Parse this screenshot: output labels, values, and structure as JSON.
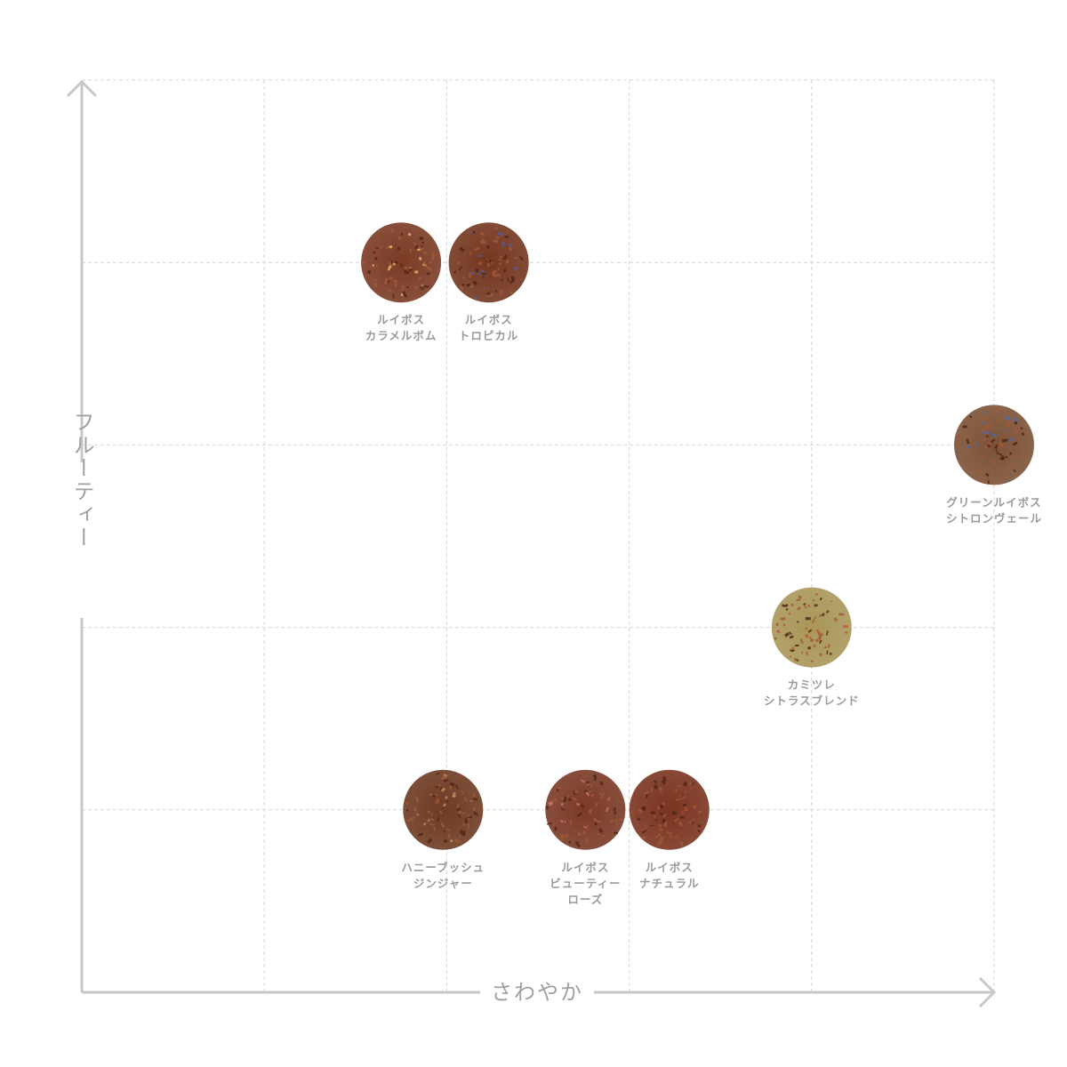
{
  "chart_data": {
    "type": "scatter",
    "xlabel": "さわやか",
    "ylabel": "フルーティー",
    "xlim": [
      0,
      5
    ],
    "ylim": [
      0,
      5
    ],
    "grid": true,
    "points": [
      {
        "label": [
          "ルイボス",
          "カラメルボム"
        ],
        "x": 1.75,
        "y": 4,
        "color": "#7a3b24",
        "accent": "#e8c070"
      },
      {
        "label": [
          "ルイボス",
          "トロピカル"
        ],
        "x": 2.23,
        "y": 4,
        "color": "#74371f",
        "accent": "#4a5db0"
      },
      {
        "label": [
          "グリーンルイボス",
          "シトロンヴェール"
        ],
        "x": 5,
        "y": 3,
        "color": "#7c5236",
        "accent": "#5566aa"
      },
      {
        "label": [
          "カミツレ",
          "シトラスブレンド"
        ],
        "x": 4,
        "y": 2,
        "color": "#a99758",
        "accent": "#c0563a"
      },
      {
        "label": [
          "ハニーブッシュ",
          "ジンジャー"
        ],
        "x": 1.98,
        "y": 1,
        "color": "#6e3a22",
        "accent": "#c08a60"
      },
      {
        "label": [
          "ルイボス",
          "ビューティー",
          "ローズ"
        ],
        "x": 2.76,
        "y": 1,
        "color": "#7a3a26",
        "accent": "#d0707a"
      },
      {
        "label": [
          "ルイボス",
          "ナチュラル"
        ],
        "x": 3.22,
        "y": 1,
        "color": "#7a3420",
        "accent": "#9a4a2c"
      }
    ]
  }
}
